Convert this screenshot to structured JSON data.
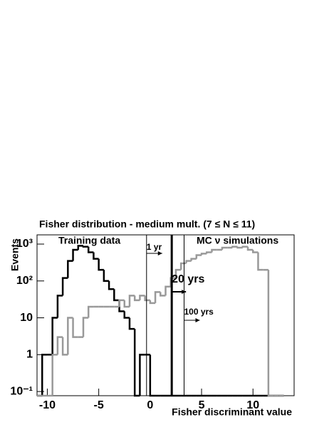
{
  "chart_data": {
    "type": "histogram",
    "title": "Fisher distribution - medium mult. (7 ≤ N ≤ 11)",
    "xlabel": "Fisher discriminant value",
    "ylabel": "Events",
    "log_y": true,
    "bins": [
      -11,
      -10.5,
      -10,
      -9.5,
      -9,
      -8.5,
      -8,
      -7.5,
      -7,
      -6.5,
      -6,
      -5.5,
      -5,
      -4.5,
      -4,
      -3.5,
      -3,
      -2.5,
      -2,
      -1.5,
      -1,
      -0.5,
      0,
      0.5,
      1,
      1.5,
      2,
      2.5,
      3,
      3.5,
      4,
      4.5,
      5,
      5.5,
      6,
      6.5,
      7,
      7.5,
      8,
      8.5,
      9,
      9.5,
      10,
      10.5,
      11,
      11.5,
      12,
      12.5,
      13
    ],
    "series": [
      {
        "name": "Training data",
        "color": "#000000",
        "values": [
          0,
          1,
          1,
          10,
          40,
          120,
          350,
          700,
          900,
          850,
          600,
          400,
          200,
          100,
          60,
          30,
          15,
          10,
          5,
          0,
          1,
          1,
          0,
          0,
          0,
          0,
          0,
          0,
          0,
          0,
          0,
          0,
          0,
          0,
          0,
          0,
          0,
          0,
          0,
          0,
          0,
          0,
          0,
          0,
          0,
          0,
          0,
          0
        ]
      },
      {
        "name": "MC ν simulations",
        "color": "#999999",
        "values": [
          0,
          0,
          0,
          1,
          3,
          1,
          10,
          3,
          3,
          10,
          20,
          20,
          20,
          20,
          20,
          20,
          30,
          20,
          40,
          30,
          40,
          30,
          25,
          50,
          40,
          70,
          120,
          200,
          300,
          350,
          400,
          500,
          550,
          600,
          700,
          700,
          800,
          800,
          850,
          800,
          850,
          700,
          600,
          200,
          200,
          0,
          0,
          0
        ]
      }
    ],
    "annotations": [
      {
        "text": "1 yr",
        "x": -0.35
      },
      {
        "text": "20 yrs",
        "x": 2.1
      },
      {
        "text": "100 yrs",
        "x": 3.3
      }
    ],
    "xlim": [
      -11,
      14
    ],
    "xticks": [
      -10,
      -5,
      0,
      5,
      10
    ],
    "ylim": [
      0.077,
      1780
    ],
    "yticks": [
      {
        "value": 0.1,
        "label": "10⁻¹"
      },
      1,
      10,
      {
        "value": 100,
        "label": "10²"
      },
      {
        "value": 1000,
        "label": "10³"
      }
    ]
  }
}
